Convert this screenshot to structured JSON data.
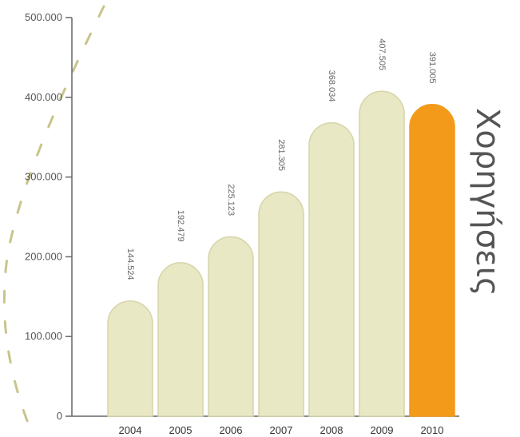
{
  "chart_data": {
    "type": "bar",
    "title": "Χορηγήσεις",
    "categories": [
      "2004",
      "2005",
      "2006",
      "2007",
      "2008",
      "2009",
      "2010"
    ],
    "values": [
      144524,
      192479,
      225123,
      281305,
      368034,
      407505,
      391005
    ],
    "value_labels": [
      "144.524",
      "192.479",
      "225.123",
      "281.305",
      "368.034",
      "407.505",
      "391.005"
    ],
    "yticks": [
      0,
      100000,
      200000,
      300000,
      400000,
      500000
    ],
    "ytick_labels": [
      "0",
      "100.000",
      "200.000",
      "300.000",
      "400.000",
      "500.000"
    ],
    "ylim": [
      0,
      500000
    ],
    "xlabel": "",
    "ylabel": "",
    "grid": false,
    "colors": {
      "bar": "#e9e8c4",
      "bar_stroke": "#d6d4a8",
      "highlight": "#f39a1a",
      "highlight_category": "2010",
      "axis": "#666666",
      "dash": "#c8c48a"
    }
  }
}
